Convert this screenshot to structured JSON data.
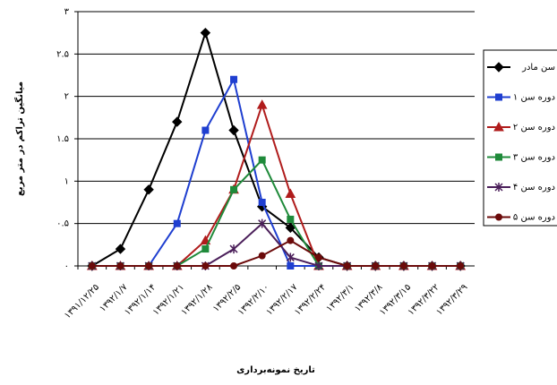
{
  "chart_data": {
    "type": "line",
    "y_label": "میانگین تراکم در متر مربع",
    "x_label": "تاریخ نمونه‌برداری",
    "categories": [
      "۱۳۹۱/۱۲/۲۵",
      "۱۳۹۲/۱/۷",
      "۱۳۹۲/۱/۱۴",
      "۱۳۹۲/۱/۲۱",
      "۱۳۹۲/۱/۲۸",
      "۱۳۹۲/۲/۵",
      "۱۳۹۲/۲/۱۰",
      "۱۳۹۲/۲/۱۷",
      "۱۳۹۲/۲/۲۴",
      "۱۳۹۲/۳/۱",
      "۱۳۹۲/۳/۸",
      "۱۳۹۲/۳/۱۵",
      "۱۳۹۲/۳/۲۲",
      "۱۳۹۲/۳/۲۹"
    ],
    "series": [
      {
        "name": "سن مادر",
        "color": "#000000",
        "marker": "diamond",
        "values": [
          0,
          0.2,
          0.9,
          1.7,
          2.75,
          1.6,
          0.7,
          0.45,
          0.1,
          0,
          0,
          0,
          0,
          0
        ]
      },
      {
        "name": "دوره سن ۱",
        "color": "#1f3fd0",
        "marker": "square",
        "values": [
          0,
          0,
          0,
          0.5,
          1.6,
          2.2,
          0.75,
          0,
          0,
          0,
          0,
          0,
          0,
          0
        ]
      },
      {
        "name": "دوره سن ۲",
        "color": "#b01c1c",
        "marker": "triangle",
        "values": [
          0,
          0,
          0,
          0,
          0.3,
          0.9,
          1.9,
          0.85,
          0,
          0,
          0,
          0,
          0,
          0
        ]
      },
      {
        "name": "دوره سن ۳",
        "color": "#1f8a3a",
        "marker": "square",
        "values": [
          0,
          0,
          0,
          0,
          0.2,
          0.9,
          1.25,
          0.55,
          0,
          0,
          0,
          0,
          0,
          0
        ]
      },
      {
        "name": "دوره سن ۴",
        "color": "#4b1f5a",
        "marker": "x",
        "values": [
          0,
          0,
          0,
          0,
          0,
          0.2,
          0.5,
          0.1,
          0,
          0,
          0,
          0,
          0,
          0
        ]
      },
      {
        "name": "دوره سن ۵",
        "color": "#6b0a0a",
        "marker": "circle",
        "values": [
          0,
          0,
          0,
          0,
          0,
          0,
          0.12,
          0.3,
          0.1,
          0,
          0,
          0,
          0,
          0
        ]
      }
    ],
    "ylim": [
      0,
      3
    ],
    "yticks": [
      {
        "value": 0,
        "label": "۰"
      },
      {
        "value": 0.5,
        "label": "۰.۵"
      },
      {
        "value": 1,
        "label": "۱"
      },
      {
        "value": 1.5,
        "label": "۱.۵"
      },
      {
        "value": 2,
        "label": "۲"
      },
      {
        "value": 2.5,
        "label": "۲.۵"
      },
      {
        "value": 3,
        "label": "۳"
      }
    ],
    "grid": true
  }
}
